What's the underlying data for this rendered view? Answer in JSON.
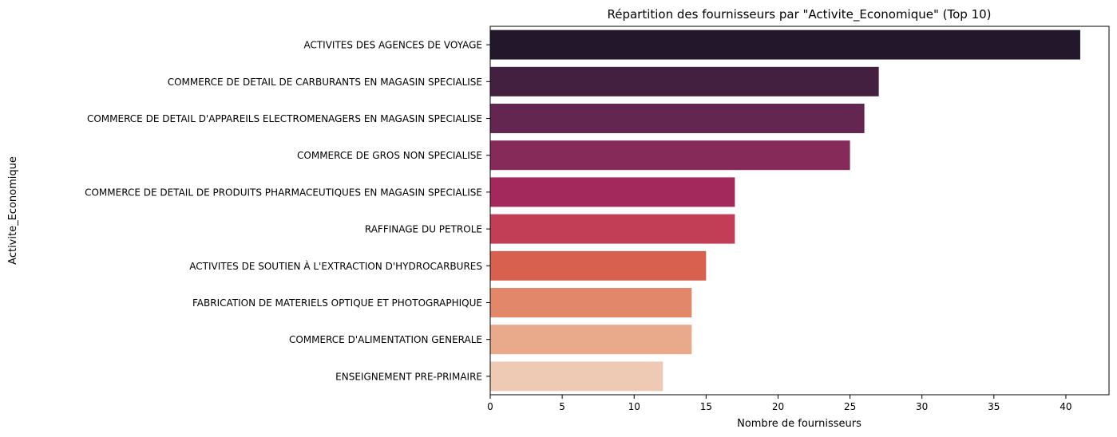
{
  "chart_data": {
    "type": "bar",
    "orientation": "horizontal",
    "title": "Répartition des fournisseurs par \"Activite_Economique\" (Top 10)",
    "xlabel": "Nombre de fournisseurs",
    "ylabel": "Activite_Economique",
    "xlim": [
      0,
      43
    ],
    "xticks": [
      0,
      5,
      10,
      15,
      20,
      25,
      30,
      35,
      40
    ],
    "grid": false,
    "categories": [
      "ACTIVITES DES AGENCES DE VOYAGE",
      "COMMERCE DE DETAIL DE CARBURANTS EN MAGASIN SPECIALISE",
      "COMMERCE DE DETAIL D'APPAREILS ELECTROMENAGERS EN MAGASIN SPECIALISE",
      "COMMERCE DE GROS NON SPECIALISE",
      "COMMERCE DE DETAIL DE PRODUITS PHARMACEUTIQUES EN MAGASIN SPECIALISE",
      "RAFFINAGE DU PETROLE",
      "ACTIVITES DE SOUTIEN À L'EXTRACTION D'HYDROCARBURES",
      "FABRICATION DE MATERIELS OPTIQUE ET PHOTOGRAPHIQUE",
      "COMMERCE D'ALIMENTATION GENERALE",
      "ENSEIGNEMENT PRE-PRIMAIRE"
    ],
    "values": [
      41,
      27,
      26,
      25,
      17,
      17,
      15,
      14,
      14,
      12
    ],
    "colors": [
      "#23172c",
      "#43203f",
      "#622650",
      "#862a5a",
      "#a3285c",
      "#c23e56",
      "#d7604f",
      "#e2876a",
      "#e9a98b",
      "#eecab4"
    ]
  }
}
